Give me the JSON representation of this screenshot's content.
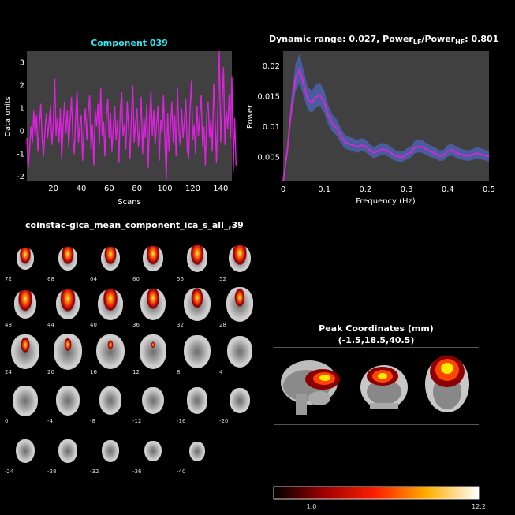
{
  "timecourse": {
    "title": "Component 039",
    "xlabel": "Scans",
    "ylabel": "Data units",
    "xticks": [
      "20",
      "40",
      "60",
      "80",
      "100",
      "120",
      "140"
    ],
    "yticks": [
      "3",
      "2",
      "1",
      "0",
      "-1",
      "-2"
    ]
  },
  "spectrum": {
    "title_prefix": "Dynamic range: 0.027, Power",
    "title_sub1": "LF",
    "title_mid": "/Power",
    "title_sub2": "HF",
    "title_suffix": ": 0.801",
    "xlabel": "Frequency (Hz)",
    "ylabel": "Power",
    "xticks": [
      "0",
      "0.1",
      "0.2",
      "0.3",
      "0.4",
      "0.5"
    ],
    "yticks": [
      "0.02",
      "0.015",
      "0.01",
      "0.005"
    ]
  },
  "montage": {
    "title": "coinstac-gica_mean_component_ica_s_all_,39",
    "slices": [
      "72",
      "68",
      "64",
      "60",
      "56",
      "52",
      "48",
      "44",
      "40",
      "36",
      "32",
      "28",
      "24",
      "20",
      "16",
      "12",
      "8",
      "4",
      "0",
      "-4",
      "-8",
      "-12",
      "-16",
      "-20",
      "-24",
      "-28",
      "-32",
      "-36",
      "-40"
    ]
  },
  "peak": {
    "title": "Peak Coordinates (mm)",
    "coords": "(-1.5,18.5,40.5)"
  },
  "colorbar": {
    "min_label": "1.0",
    "max_label": "12.2"
  },
  "chart_data": [
    {
      "type": "line",
      "title": "Component 039",
      "xlabel": "Scans",
      "ylabel": "Data units",
      "xlim": [
        1,
        148
      ],
      "ylim": [
        -2.2,
        3.5
      ],
      "series": [
        {
          "values": [
            -0.3,
            -1.6,
            -0.8,
            0.2,
            -0.5,
            0.9,
            -0.2,
            0.7,
            -0.9,
            0.3,
            1.2,
            -0.4,
            -1.1,
            0.0,
            0.8,
            -0.3,
            0.5,
            1.1,
            -0.6,
            0.3,
            2.3,
            -0.2,
            0.6,
            -0.5,
            1.0,
            -1.2,
            0.2,
            1.3,
            -0.1,
            0.9,
            -0.7,
            0.4,
            1.5,
            -0.3,
            -1.0,
            0.6,
            1.8,
            -0.5,
            0.2,
            0.7,
            -1.3,
            0.1,
            1.0,
            -0.4,
            0.8,
            1.6,
            -0.8,
            0.3,
            -1.5,
            0.9,
            0.2,
            1.2,
            -0.6,
            1.9,
            -0.2,
            0.4,
            -1.1,
            0.6,
            1.4,
            -0.3,
            0.8,
            -0.9,
            0.2,
            1.1,
            -0.4,
            0.5,
            -1.4,
            0.9,
            1.7,
            -0.2,
            0.3,
            -0.8,
            1.3,
            0.1,
            -1.2,
            0.7,
            2.0,
            -0.5,
            0.4,
            1.0,
            -0.7,
            0.2,
            1.5,
            -1.0,
            0.6,
            -0.3,
            1.2,
            -1.6,
            0.4,
            1.8,
            -0.2,
            0.9,
            -0.6,
            0.3,
            1.1,
            -1.3,
            0.5,
            -0.1,
            1.6,
            -0.4,
            -2.1,
            0.8,
            -0.9,
            0.2,
            1.3,
            -0.5,
            0.7,
            -1.1,
            1.9,
            0.0,
            -0.6,
            1.0,
            -0.3,
            0.5,
            1.4,
            -0.8,
            -1.2,
            0.9,
            2.2,
            -0.4,
            0.3,
            -1.0,
            1.1,
            -0.2,
            0.6,
            1.6,
            -0.7,
            0.2,
            -1.5,
            0.8,
            1.3,
            -0.3,
            0.5,
            -0.9,
            2.1,
            0.4,
            -1.4,
            1.0,
            3.5,
            -0.5,
            1.2,
            2.8,
            -0.6,
            0.9,
            0.1,
            1.6,
            -0.3,
            2.4,
            -1.8,
            0.6,
            -1.5
          ]
        }
      ]
    },
    {
      "type": "line",
      "title": "Dynamic range: 0.027, Power_LF/Power_HF: 0.801",
      "xlabel": "Frequency (Hz)",
      "ylabel": "Power",
      "xlim": [
        0,
        0.5
      ],
      "ylim": [
        0.001,
        0.0225
      ],
      "series": [
        {
          "x": [
            0,
            0.01,
            0.02,
            0.03,
            0.04,
            0.05,
            0.06,
            0.07,
            0.08,
            0.09,
            0.1,
            0.11,
            0.12,
            0.13,
            0.14,
            0.15,
            0.16,
            0.17,
            0.18,
            0.19,
            0.2,
            0.21,
            0.22,
            0.23,
            0.24,
            0.25,
            0.26,
            0.27,
            0.28,
            0.29,
            0.3,
            0.31,
            0.32,
            0.33,
            0.34,
            0.35,
            0.36,
            0.37,
            0.38,
            0.39,
            0.4,
            0.41,
            0.42,
            0.43,
            0.44,
            0.45,
            0.46,
            0.47,
            0.48,
            0.49,
            0.5
          ],
          "values": [
            0.001,
            0.006,
            0.013,
            0.018,
            0.0195,
            0.017,
            0.0145,
            0.014,
            0.015,
            0.0152,
            0.014,
            0.0118,
            0.0105,
            0.0098,
            0.0085,
            0.0075,
            0.0072,
            0.007,
            0.0067,
            0.007,
            0.0068,
            0.0062,
            0.0057,
            0.006,
            0.0063,
            0.0062,
            0.0058,
            0.0053,
            0.0051,
            0.005,
            0.0055,
            0.0058,
            0.0066,
            0.0068,
            0.0066,
            0.0062,
            0.0059,
            0.0056,
            0.0052,
            0.0053,
            0.006,
            0.0062,
            0.0058,
            0.0055,
            0.0053,
            0.0052,
            0.0054,
            0.0057,
            0.0055,
            0.0053,
            0.0051
          ]
        }
      ]
    }
  ]
}
